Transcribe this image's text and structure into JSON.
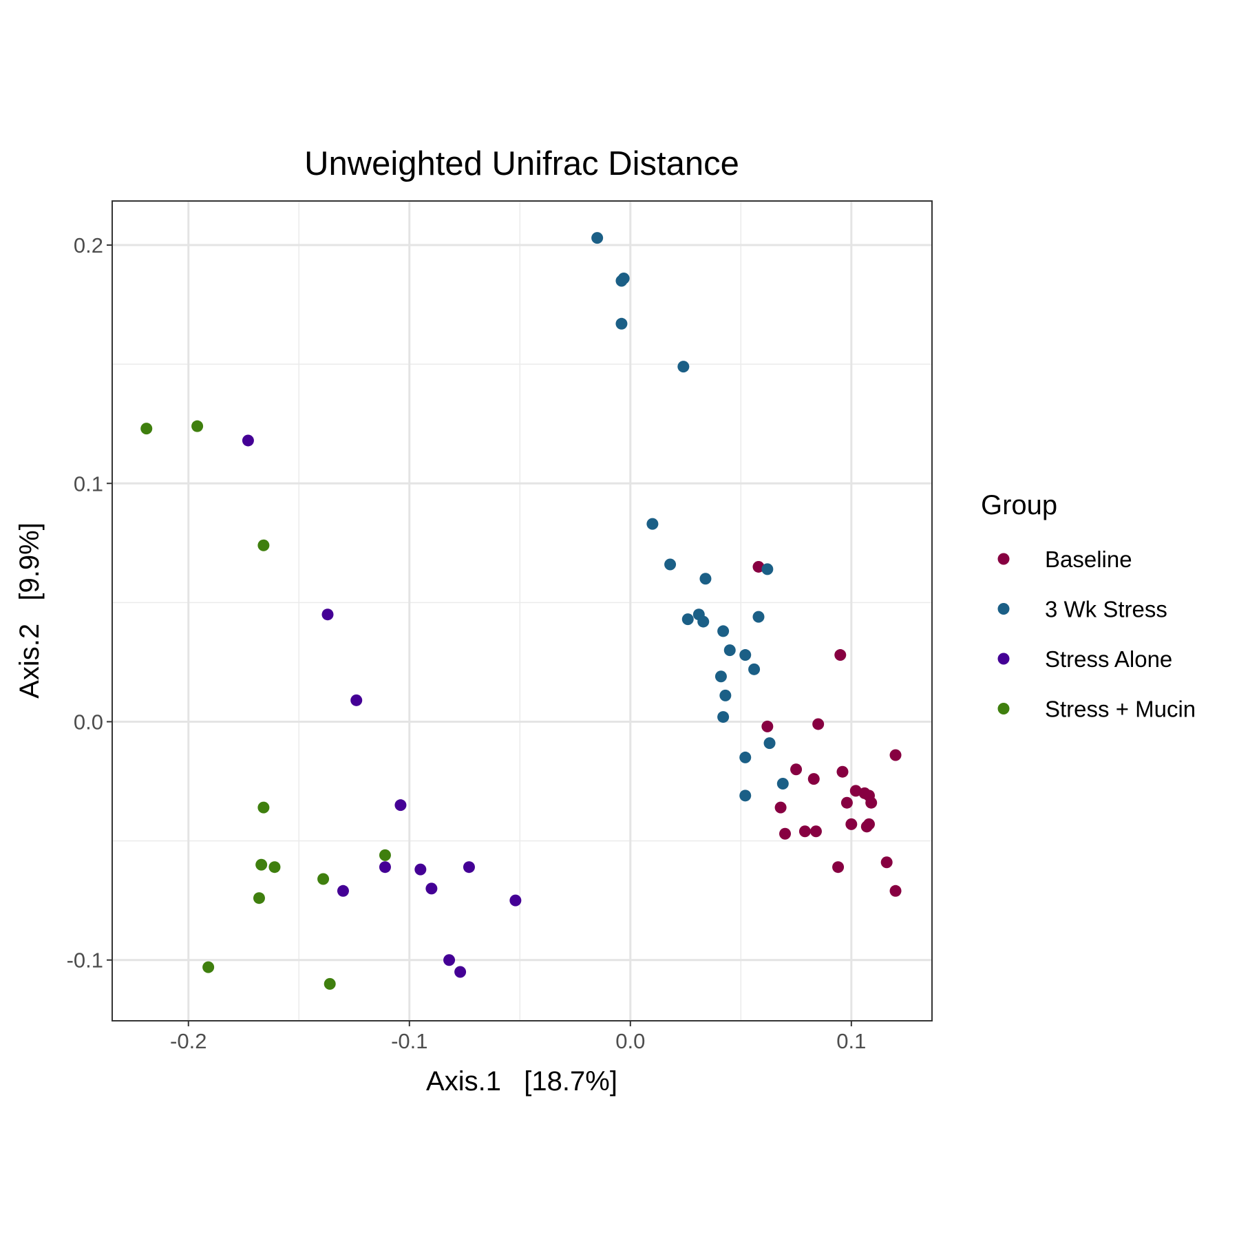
{
  "chart_data": {
    "type": "scatter",
    "title": "Unweighted Unifrac Distance",
    "xlabel": "Axis.1   [18.7%]",
    "ylabel": "Axis.2   [9.9%]",
    "xlim": [
      -0.2345,
      0.1365
    ],
    "ylim": [
      -0.1255,
      0.2185
    ],
    "xticks": [
      {
        "value": -0.2,
        "label": "-0.2"
      },
      {
        "value": -0.1,
        "label": "-0.1"
      },
      {
        "value": 0.0,
        "label": "0.0"
      },
      {
        "value": 0.1,
        "label": "0.1"
      }
    ],
    "yticks": [
      {
        "value": -0.1,
        "label": "-0.1"
      },
      {
        "value": 0.0,
        "label": "0.0"
      },
      {
        "value": 0.1,
        "label": "0.1"
      },
      {
        "value": 0.2,
        "label": "0.2"
      }
    ],
    "grid": true,
    "legend": {
      "title": "Group",
      "position": "right"
    },
    "series": [
      {
        "name": "Baseline",
        "color": "#870041",
        "points": [
          [
            0.058,
            0.065
          ],
          [
            0.095,
            0.028
          ],
          [
            0.062,
            -0.002
          ],
          [
            0.085,
            -0.001
          ],
          [
            0.12,
            -0.014
          ],
          [
            0.075,
            -0.02
          ],
          [
            0.096,
            -0.021
          ],
          [
            0.083,
            -0.024
          ],
          [
            0.102,
            -0.029
          ],
          [
            0.106,
            -0.03
          ],
          [
            0.108,
            -0.031
          ],
          [
            0.098,
            -0.034
          ],
          [
            0.109,
            -0.034
          ],
          [
            0.068,
            -0.036
          ],
          [
            0.1,
            -0.043
          ],
          [
            0.108,
            -0.043
          ],
          [
            0.107,
            -0.044
          ],
          [
            0.07,
            -0.047
          ],
          [
            0.079,
            -0.046
          ],
          [
            0.084,
            -0.046
          ],
          [
            0.116,
            -0.059
          ],
          [
            0.094,
            -0.061
          ],
          [
            0.12,
            -0.071
          ]
        ]
      },
      {
        "name": "3 Wk Stress",
        "color": "#1b5f86",
        "points": [
          [
            -0.015,
            0.203
          ],
          [
            -0.003,
            0.186
          ],
          [
            -0.004,
            0.185
          ],
          [
            -0.004,
            0.167
          ],
          [
            0.024,
            0.149
          ],
          [
            0.01,
            0.083
          ],
          [
            0.018,
            0.066
          ],
          [
            0.062,
            0.064
          ],
          [
            0.034,
            0.06
          ],
          [
            0.058,
            0.044
          ],
          [
            0.031,
            0.045
          ],
          [
            0.026,
            0.043
          ],
          [
            0.033,
            0.042
          ],
          [
            0.042,
            0.038
          ],
          [
            0.045,
            0.03
          ],
          [
            0.052,
            0.028
          ],
          [
            0.056,
            0.022
          ],
          [
            0.041,
            0.019
          ],
          [
            0.043,
            0.011
          ],
          [
            0.042,
            0.002
          ],
          [
            0.063,
            -0.009
          ],
          [
            0.052,
            -0.015
          ],
          [
            0.069,
            -0.026
          ],
          [
            0.052,
            -0.031
          ]
        ]
      },
      {
        "name": "Stress Alone",
        "color": "#440095",
        "points": [
          [
            -0.173,
            0.118
          ],
          [
            -0.137,
            0.045
          ],
          [
            -0.124,
            0.009
          ],
          [
            -0.104,
            -0.035
          ],
          [
            -0.111,
            -0.061
          ],
          [
            -0.095,
            -0.062
          ],
          [
            -0.073,
            -0.061
          ],
          [
            -0.13,
            -0.071
          ],
          [
            -0.09,
            -0.07
          ],
          [
            -0.052,
            -0.075
          ],
          [
            -0.082,
            -0.1
          ],
          [
            -0.077,
            -0.105
          ]
        ]
      },
      {
        "name": "Stress + Mucin",
        "color": "#3f7f0e",
        "points": [
          [
            -0.219,
            0.123
          ],
          [
            -0.196,
            0.124
          ],
          [
            -0.166,
            0.074
          ],
          [
            -0.166,
            -0.036
          ],
          [
            -0.111,
            -0.056
          ],
          [
            -0.167,
            -0.06
          ],
          [
            -0.161,
            -0.061
          ],
          [
            -0.139,
            -0.066
          ],
          [
            -0.168,
            -0.074
          ],
          [
            -0.191,
            -0.103
          ],
          [
            -0.136,
            -0.11
          ]
        ]
      }
    ]
  }
}
